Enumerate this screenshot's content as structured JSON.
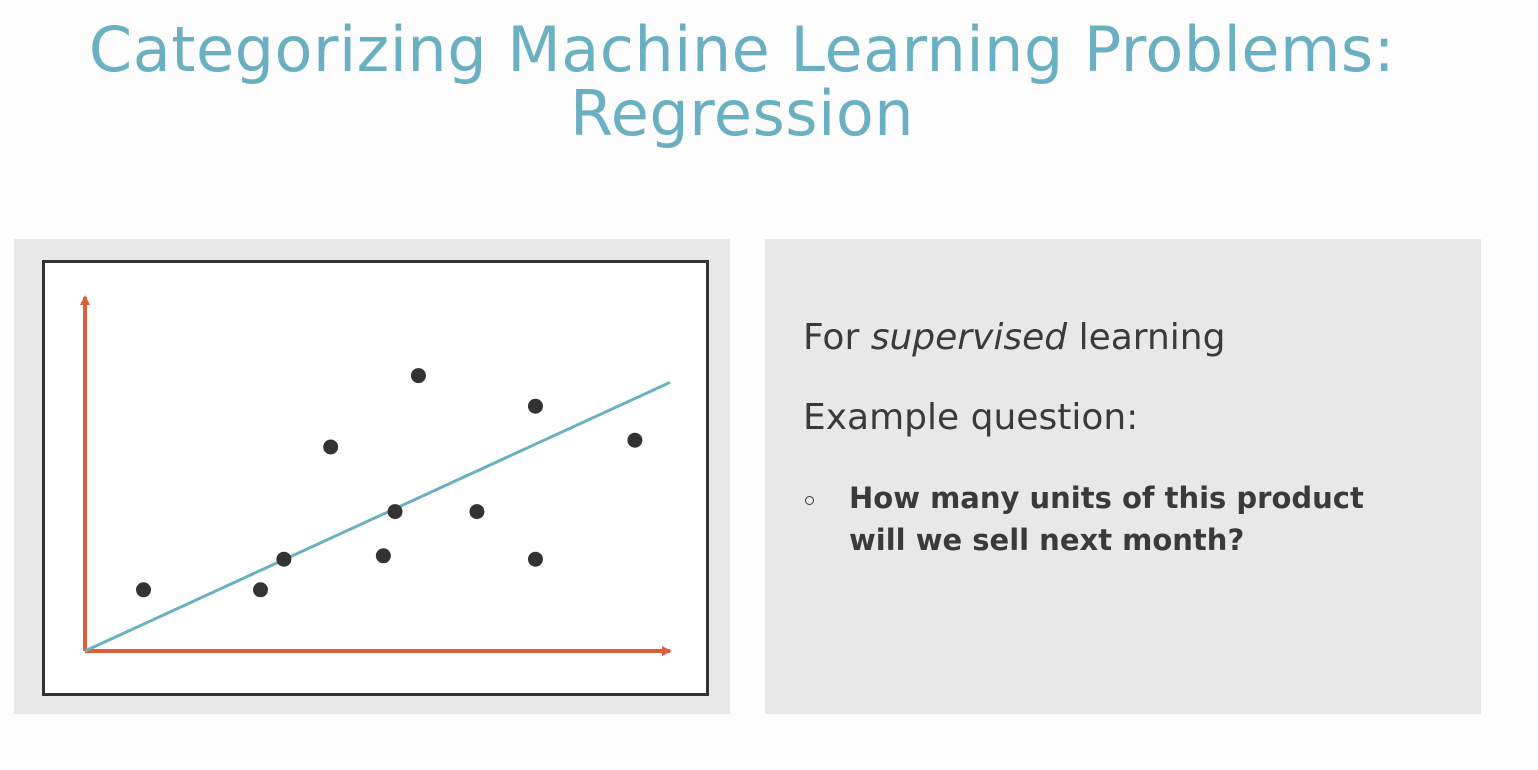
{
  "title": {
    "line1": "Categorizing Machine Learning Problems:",
    "line2": "Regression"
  },
  "right_panel": {
    "line1_before": "For ",
    "line1_emphasis": "supervised",
    "line1_after": " learning",
    "line2": "Example question:",
    "bullet_line1": "How many units of this product",
    "bullet_line2": "will we sell next month?"
  },
  "colors": {
    "title": "#6ab0c2",
    "axes": "#d9603b",
    "regression_line": "#6ab0c2",
    "points": "#333333",
    "panel_bg": "#e8e8e8"
  },
  "chart_data": {
    "type": "scatter",
    "title": "",
    "xlabel": "",
    "ylabel": "",
    "xlim": [
      0,
      100
    ],
    "ylim": [
      0,
      100
    ],
    "points": [
      {
        "x": 10,
        "y": 18
      },
      {
        "x": 30,
        "y": 18
      },
      {
        "x": 34,
        "y": 27
      },
      {
        "x": 42,
        "y": 60
      },
      {
        "x": 51,
        "y": 28
      },
      {
        "x": 53,
        "y": 41
      },
      {
        "x": 57,
        "y": 81
      },
      {
        "x": 67,
        "y": 41
      },
      {
        "x": 77,
        "y": 72
      },
      {
        "x": 77,
        "y": 27
      },
      {
        "x": 94,
        "y": 62
      }
    ],
    "fit_line": {
      "x": [
        0,
        100
      ],
      "y": [
        0,
        79
      ]
    },
    "grid": false,
    "legend": "none"
  }
}
